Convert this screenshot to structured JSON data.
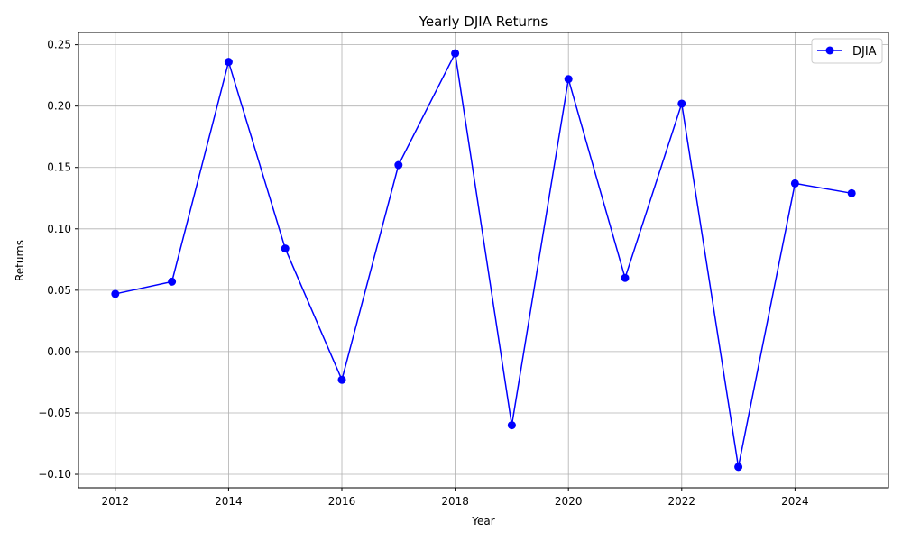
{
  "chart_data": {
    "type": "line",
    "title": "Yearly DJIA Returns",
    "xlabel": "Year",
    "ylabel": "Returns",
    "x": [
      2012,
      2013,
      2014,
      2015,
      2016,
      2017,
      2018,
      2019,
      2020,
      2021,
      2022,
      2023,
      2024,
      2025
    ],
    "series": [
      {
        "name": "DJIA",
        "color": "#0000ff",
        "marker": "circle",
        "values": [
          0.047,
          0.057,
          0.236,
          0.084,
          -0.023,
          0.152,
          0.243,
          -0.06,
          0.222,
          0.06,
          0.202,
          -0.094,
          0.137,
          0.129
        ]
      }
    ],
    "xlim": [
      2011.35,
      2025.65
    ],
    "ylim": [
      -0.111,
      0.26
    ],
    "xticks": [
      2012,
      2014,
      2016,
      2018,
      2020,
      2022,
      2024
    ],
    "yticks": [
      -0.1,
      -0.05,
      0.0,
      0.05,
      0.1,
      0.15,
      0.2,
      0.25
    ],
    "ytick_labels": [
      "−0.10",
      "−0.05",
      "0.00",
      "0.05",
      "0.10",
      "0.15",
      "0.20",
      "0.25"
    ],
    "grid": true,
    "legend_position": "top-right"
  }
}
